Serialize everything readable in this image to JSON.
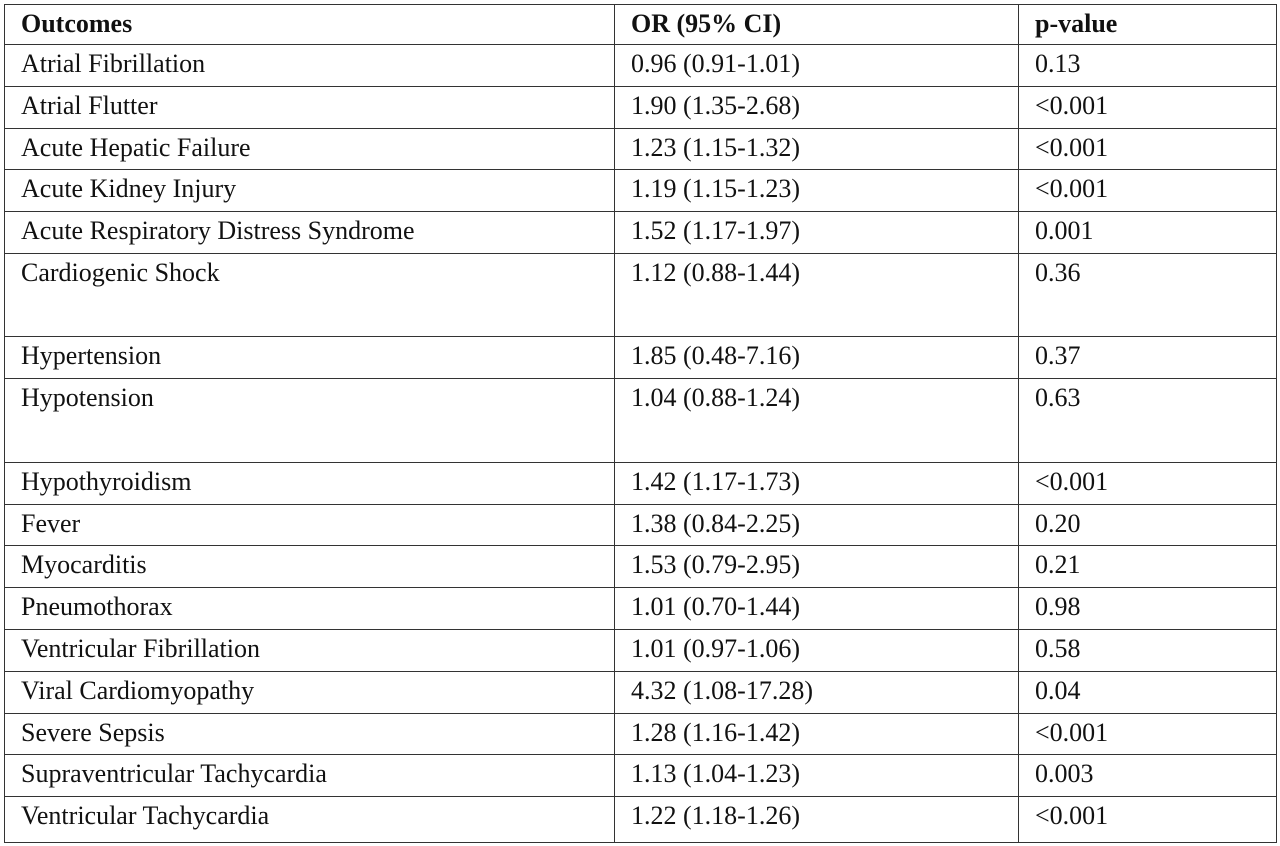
{
  "table": {
    "header": [
      "Outcomes",
      "OR (95% CI)",
      "p-value"
    ],
    "rows": [
      [
        "Atrial Fibrillation",
        "0.96 (0.91-1.01)",
        "0.13"
      ],
      [
        "Atrial Flutter",
        "1.90 (1.35-2.68)",
        "<0.001"
      ],
      [
        "Acute Hepatic Failure",
        "1.23 (1.15-1.32)",
        "<0.001"
      ],
      [
        "Acute Kidney Injury",
        "1.19 (1.15-1.23)",
        "<0.001"
      ],
      [
        "Acute Respiratory Distress Syndrome",
        "1.52 (1.17-1.97)",
        "0.001"
      ],
      [
        "Cardiogenic Shock",
        "1.12 (0.88-1.44)",
        "0.36"
      ],
      [
        "Hypertension",
        "1.85 (0.48-7.16)",
        "0.37"
      ],
      [
        "Hypotension",
        "1.04 (0.88-1.24)",
        "0.63"
      ],
      [
        "Hypothyroidism",
        "1.42 (1.17-1.73)",
        "<0.001"
      ],
      [
        "Fever",
        "1.38 (0.84-2.25)",
        "0.20"
      ],
      [
        "Myocarditis",
        "1.53 (0.79-2.95)",
        "0.21"
      ],
      [
        "Pneumothorax",
        "1.01 (0.70-1.44)",
        "0.98"
      ],
      [
        "Ventricular Fibrillation",
        "1.01 (0.97-1.06)",
        "0.58"
      ],
      [
        "Viral Cardiomyopathy",
        "4.32 (1.08-17.28)",
        "0.04"
      ],
      [
        "Severe Sepsis",
        "1.28 (1.16-1.42)",
        "<0.001"
      ],
      [
        "Supraventricular Tachycardia",
        "1.13 (1.04-1.23)",
        "0.003"
      ],
      [
        "Ventricular Tachycardia",
        "1.22 (1.18-1.26)",
        "<0.001"
      ]
    ]
  }
}
